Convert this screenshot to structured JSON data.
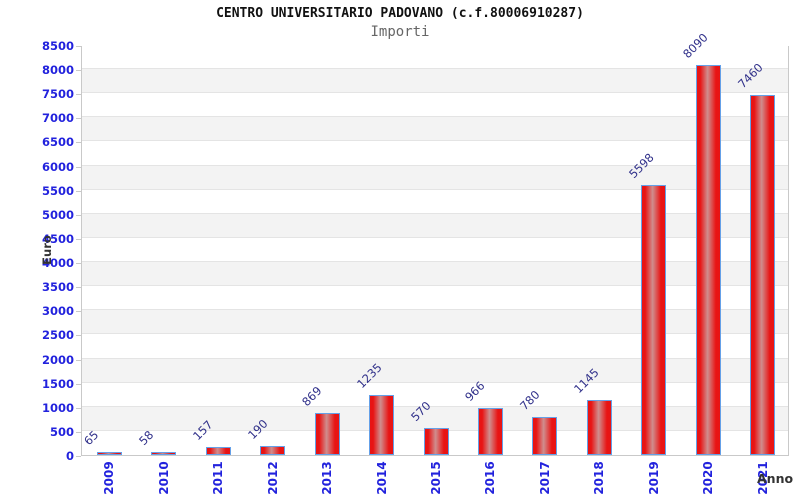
{
  "header": {
    "title": "CENTRO UNIVERSITARIO PADOVANO (c.f.80006910287)",
    "subtitle": "Importi"
  },
  "chart_data": {
    "type": "bar",
    "title": "CENTRO UNIVERSITARIO PADOVANO (c.f.80006910287)",
    "subtitle": "Importi",
    "xlabel": "Anno",
    "ylabel": "Euro",
    "categories": [
      "2009",
      "2010",
      "2011",
      "2012",
      "2013",
      "2014",
      "2015",
      "2016",
      "2017",
      "2018",
      "2019",
      "2020",
      "2021"
    ],
    "values": [
      65,
      58,
      157,
      190,
      869,
      1235,
      570,
      966,
      780,
      1145,
      5598,
      8090,
      7460
    ],
    "ylim": [
      0,
      8500
    ],
    "ytick_step": 500,
    "grid": true,
    "legend_position": "none",
    "band_fill_alternating": true,
    "colors": {
      "bar_edge": "#e81414",
      "bar_mid_highlight": "#cf8e8e",
      "bar_border": "#64a0e8",
      "tick_label": "#2222dd",
      "value_label": "#30308a",
      "axis_title_text": "#333333",
      "band": "#f3f3f3",
      "gridline": "#e4e4e4",
      "plot_border": "#c9c9c9"
    }
  }
}
